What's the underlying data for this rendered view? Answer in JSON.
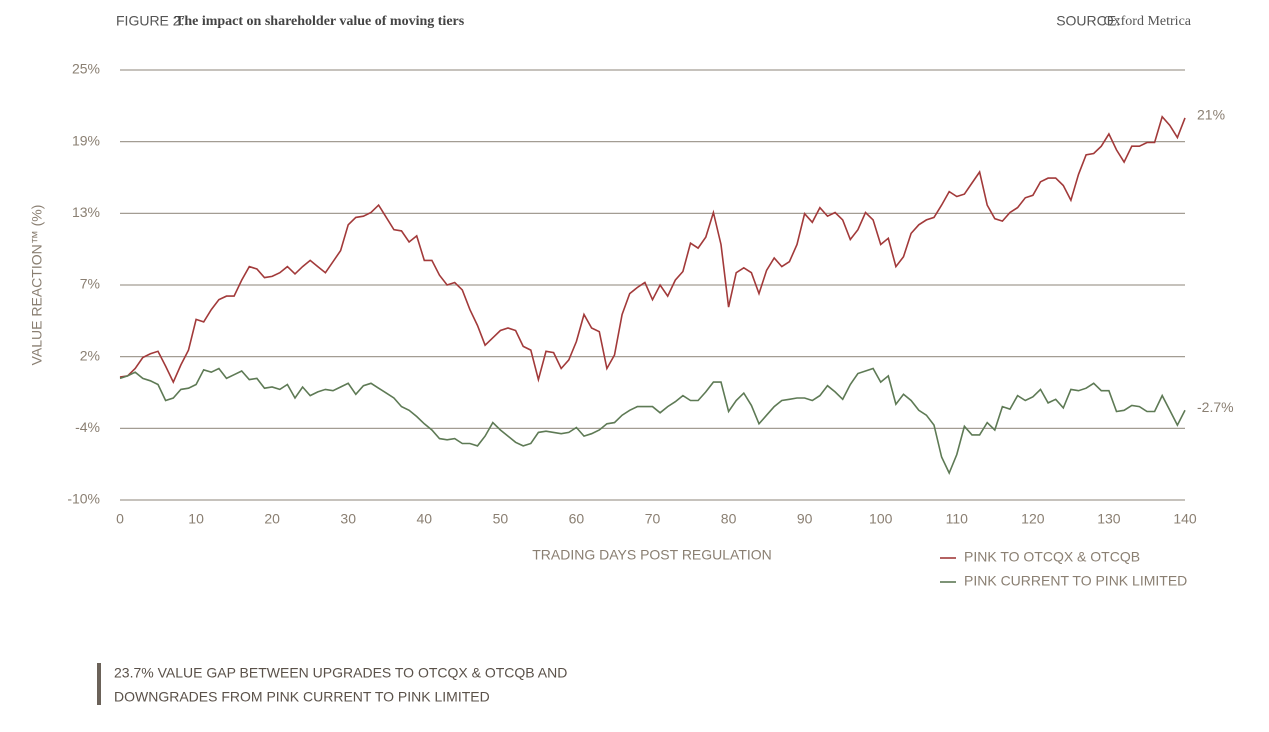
{
  "chart_data": {
    "type": "line",
    "figure_label": "FIGURE 2:",
    "title": "The impact on shareholder value of moving tiers",
    "source_label": "SOURCE:",
    "source": "Oxford Metrica",
    "y_label": "VALUE REACTION™ (%)",
    "x_label": "TRADING DAYS POST REGULATION",
    "xlim": [
      0,
      140
    ],
    "xticks": [
      0,
      10,
      20,
      30,
      40,
      50,
      60,
      70,
      80,
      90,
      100,
      110,
      120,
      130,
      140
    ],
    "ylim": [
      -10,
      25
    ],
    "yticks": [
      {
        "value": -10,
        "label": "-10%"
      },
      {
        "value": -4.17,
        "label": "-4%"
      },
      {
        "value": 1.67,
        "label": "2%"
      },
      {
        "value": 7.5,
        "label": "7%"
      },
      {
        "value": 13.33,
        "label": "13%"
      },
      {
        "value": 19.17,
        "label": "19%"
      },
      {
        "value": 25,
        "label": "25%"
      }
    ],
    "grid": true,
    "legend": "bottom-right",
    "x": [
      0,
      1,
      2,
      3,
      4,
      5,
      6,
      7,
      8,
      9,
      10,
      11,
      12,
      13,
      14,
      15,
      16,
      17,
      18,
      19,
      20,
      21,
      22,
      23,
      24,
      25,
      26,
      27,
      28,
      29,
      30,
      31,
      32,
      33,
      34,
      35,
      36,
      37,
      38,
      39,
      40,
      41,
      42,
      43,
      44,
      45,
      46,
      47,
      48,
      49,
      50,
      51,
      52,
      53,
      54,
      55,
      56,
      57,
      58,
      59,
      60,
      61,
      62,
      63,
      64,
      65,
      66,
      67,
      68,
      69,
      70,
      71,
      72,
      73,
      74,
      75,
      76,
      77,
      78,
      79,
      80,
      81,
      82,
      83,
      84,
      85,
      86,
      87,
      88,
      89,
      90,
      91,
      92,
      93,
      94,
      95,
      96,
      97,
      98,
      99,
      100,
      101,
      102,
      103,
      104,
      105,
      106,
      107,
      108,
      109,
      110,
      111,
      112,
      113,
      114,
      115,
      116,
      117,
      118,
      119,
      120,
      121,
      122,
      123,
      124,
      125,
      126,
      127,
      128,
      129,
      130,
      131,
      132,
      133,
      134,
      135,
      136,
      137,
      138,
      139,
      140
    ],
    "series": [
      {
        "name": "PINK TO OTCQX & OTCQB",
        "color": "#a23a3a",
        "end_label": "21%",
        "values": [
          0,
          0.1,
          0.7,
          1.6,
          1.9,
          2.1,
          0.9,
          -0.4,
          1.0,
          2.2,
          4.7,
          4.5,
          5.5,
          6.3,
          6.6,
          6.6,
          7.9,
          9.0,
          8.8,
          8.1,
          8.2,
          8.5,
          9.0,
          8.4,
          9.0,
          9.5,
          9.0,
          8.5,
          9.4,
          10.3,
          12.4,
          13.0,
          13.1,
          13.4,
          14.0,
          13.0,
          12.0,
          11.9,
          11.0,
          11.5,
          9.5,
          9.5,
          8.3,
          7.5,
          7.7,
          7.1,
          5.5,
          4.2,
          2.6,
          3.2,
          3.8,
          4.0,
          3.8,
          2.5,
          2.2,
          -0.2,
          2.1,
          2.0,
          0.7,
          1.4,
          2.9,
          5.1,
          4.0,
          3.7,
          0.7,
          1.8,
          5.1,
          6.8,
          7.3,
          7.7,
          6.3,
          7.5,
          6.6,
          7.9,
          8.6,
          10.9,
          10.5,
          11.4,
          13.4,
          10.8,
          5.7,
          8.5,
          8.9,
          8.5,
          6.8,
          8.7,
          9.7,
          9.0,
          9.4,
          10.8,
          13.3,
          12.6,
          13.8,
          13.1,
          13.4,
          12.8,
          11.2,
          12.0,
          13.4,
          12.8,
          10.8,
          11.3,
          9.0,
          9.8,
          11.7,
          12.4,
          12.8,
          13.0,
          14.0,
          15.1,
          14.7,
          14.9,
          15.8,
          16.7,
          14.0,
          12.9,
          12.7,
          13.4,
          13.8,
          14.6,
          14.8,
          15.9,
          16.2,
          16.2,
          15.6,
          14.4,
          16.5,
          18.1,
          18.2,
          18.8,
          19.8,
          18.5,
          17.5,
          18.8,
          18.8,
          19.1,
          19.1,
          21.2,
          20.5,
          19.5,
          21.1
        ]
      },
      {
        "name": "PINK CURRENT TO PINK LIMITED",
        "color": "#5e7a55",
        "end_label": "-2.7%",
        "values": [
          -0.1,
          0.1,
          0.4,
          -0.1,
          -0.3,
          -0.6,
          -1.9,
          -1.7,
          -1.0,
          -0.9,
          -0.6,
          0.6,
          0.4,
          0.7,
          -0.1,
          0.2,
          0.5,
          -0.2,
          -0.1,
          -0.9,
          -0.8,
          -1.0,
          -0.6,
          -1.7,
          -0.8,
          -1.5,
          -1.2,
          -1.0,
          -1.1,
          -0.8,
          -0.5,
          -1.4,
          -0.7,
          -0.5,
          -0.9,
          -1.3,
          -1.7,
          -2.4,
          -2.7,
          -3.2,
          -3.8,
          -4.3,
          -5.0,
          -5.1,
          -5.0,
          -5.4,
          -5.4,
          -5.6,
          -4.8,
          -3.7,
          -4.3,
          -4.8,
          -5.3,
          -5.6,
          -5.4,
          -4.5,
          -4.4,
          -4.5,
          -4.6,
          -4.5,
          -4.1,
          -4.8,
          -4.6,
          -4.3,
          -3.8,
          -3.7,
          -3.1,
          -2.7,
          -2.4,
          -2.4,
          -2.4,
          -2.9,
          -2.4,
          -2.0,
          -1.5,
          -1.9,
          -1.9,
          -1.2,
          -0.4,
          -0.4,
          -2.8,
          -1.9,
          -1.3,
          -2.3,
          -3.8,
          -3.1,
          -2.4,
          -1.9,
          -1.8,
          -1.7,
          -1.7,
          -1.9,
          -1.5,
          -0.7,
          -1.2,
          -1.8,
          -0.6,
          0.3,
          0.5,
          0.7,
          -0.4,
          0.1,
          -2.2,
          -1.4,
          -1.9,
          -2.7,
          -3.1,
          -3.9,
          -6.5,
          -7.8,
          -6.3,
          -4.0,
          -4.7,
          -4.7,
          -3.7,
          -4.3,
          -2.4,
          -2.6,
          -1.5,
          -1.9,
          -1.6,
          -1.0,
          -2.1,
          -1.8,
          -2.5,
          -1.0,
          -1.1,
          -0.9,
          -0.5,
          -1.1,
          -1.1,
          -2.8,
          -2.7,
          -2.3,
          -2.4,
          -2.8,
          -2.8,
          -1.5,
          -2.7,
          -3.9,
          -2.7
        ]
      }
    ],
    "callout": [
      "23.7% VALUE GAP BETWEEN UPGRADES TO OTCQX & OTCQB AND",
      "DOWNGRADES FROM PINK CURRENT TO PINK LIMITED"
    ]
  }
}
